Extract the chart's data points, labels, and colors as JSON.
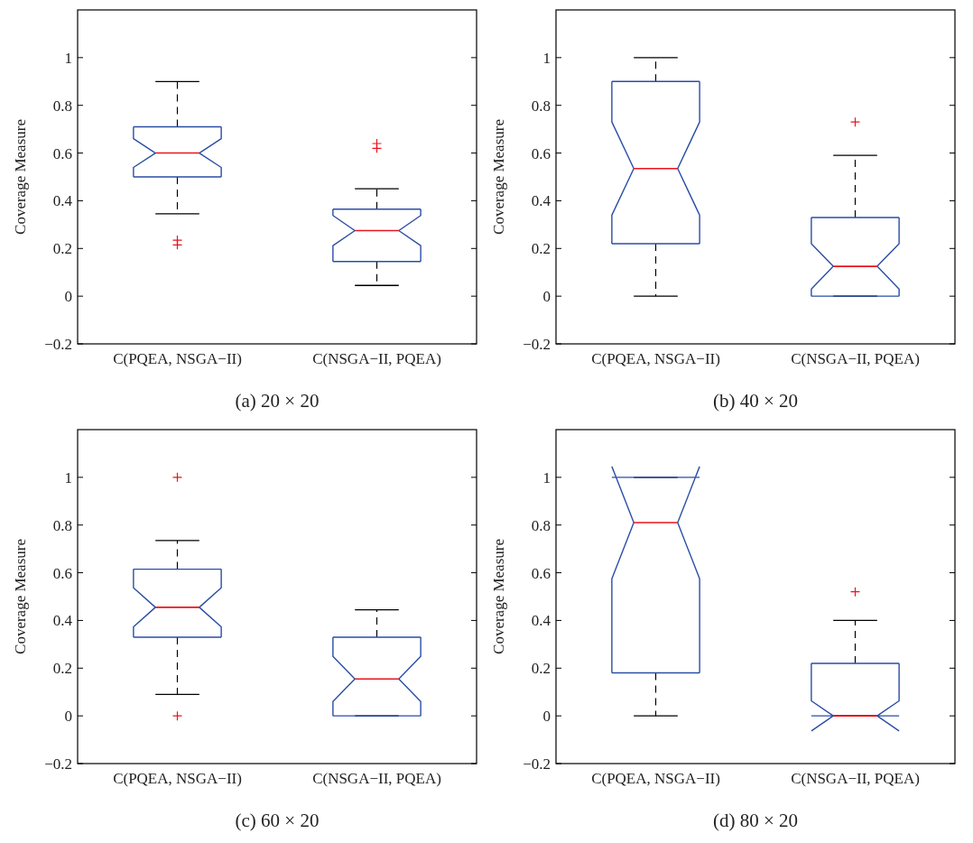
{
  "chart_data": [
    {
      "type": "box",
      "title": "(a) 20 × 20",
      "ylabel": "Coverage Measure",
      "categories": [
        "C(PQEA, NSGA−II)",
        "C(NSGA−II, PQEA)"
      ],
      "ylim": [
        -0.2,
        1.2
      ],
      "yticks": [
        -0.2,
        0,
        0.2,
        0.4,
        0.6,
        0.8,
        1
      ],
      "grid": false,
      "series": [
        {
          "color": "#2a4ea6",
          "boxes": [
            {
              "low": 0.345,
              "q1": 0.5,
              "median": 0.6,
              "q3": 0.71,
              "high": 0.9,
              "outliers": [
                0.235,
                0.215
              ]
            },
            {
              "low": 0.045,
              "q1": 0.145,
              "median": 0.275,
              "q3": 0.365,
              "high": 0.45,
              "outliers": [
                0.64,
                0.62
              ]
            }
          ]
        }
      ]
    },
    {
      "type": "box",
      "title": "(b) 40 × 20",
      "ylabel": "Coverage Measure",
      "categories": [
        "C(PQEA, NSGA−II)",
        "C(NSGA−II, PQEA)"
      ],
      "ylim": [
        -0.2,
        1.2
      ],
      "yticks": [
        -0.2,
        0,
        0.2,
        0.4,
        0.6,
        0.8,
        1
      ],
      "grid": false,
      "series": [
        {
          "color": "#2a4ea6",
          "boxes": [
            {
              "low": 0,
              "q1": 0.22,
              "median": 0.535,
              "q3": 0.9,
              "high": 1
            },
            {
              "low": 0,
              "q1": 0,
              "median": 0.125,
              "q3": 0.33,
              "high": 0.59,
              "outliers": [
                0.73
              ]
            }
          ]
        }
      ]
    },
    {
      "type": "box",
      "title": "(c) 60 × 20",
      "ylabel": "Coverage Measure",
      "categories": [
        "C(PQEA, NSGA−II)",
        "C(NSGA−II, PQEA)"
      ],
      "ylim": [
        -0.2,
        1.2
      ],
      "yticks": [
        -0.2,
        0,
        0.2,
        0.4,
        0.6,
        0.8,
        1
      ],
      "grid": false,
      "series": [
        {
          "color": "#2a4ea6",
          "boxes": [
            {
              "low": 0.09,
              "q1": 0.33,
              "median": 0.455,
              "q3": 0.615,
              "high": 0.735,
              "outliers": [
                1,
                0
              ]
            },
            {
              "low": 0,
              "q1": 0,
              "median": 0.155,
              "q3": 0.33,
              "high": 0.445
            }
          ]
        }
      ]
    },
    {
      "type": "box",
      "title": "(d) 80 × 20",
      "ylabel": "Coverage Measure",
      "categories": [
        "C(PQEA, NSGA−II)",
        "C(NSGA−II, PQEA)"
      ],
      "ylim": [
        -0.2,
        1.2
      ],
      "yticks": [
        -0.2,
        0,
        0.2,
        0.4,
        0.6,
        0.8,
        1
      ],
      "grid": false,
      "series": [
        {
          "color": "#2a4ea6",
          "boxes": [
            {
              "low": 0,
              "q1": 0.18,
              "median": 0.81,
              "q3": 1,
              "high": 1
            },
            {
              "low": 0,
              "q1": 0,
              "median": 0,
              "q3": 0.22,
              "high": 0.4,
              "outliers": [
                0.52
              ]
            }
          ]
        }
      ]
    }
  ]
}
